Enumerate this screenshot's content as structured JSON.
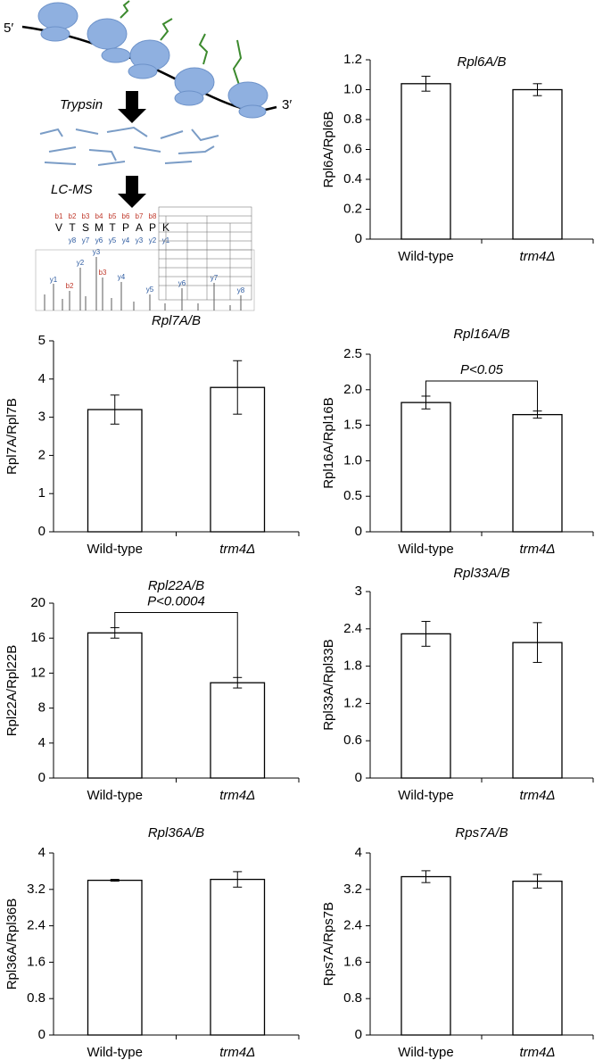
{
  "diagram": {
    "five_prime": "5′",
    "three_prime": "3′",
    "step1": "Trypsin",
    "step2": "LC-MS",
    "peptide": [
      "V",
      "T",
      "S",
      "M",
      "T",
      "P",
      "A",
      "P",
      "K"
    ],
    "b_ions": [
      "b1",
      "b2",
      "b3",
      "b4",
      "b5",
      "b6",
      "b7",
      "b8"
    ],
    "y_ions": [
      "y8",
      "y7",
      "y6",
      "y5",
      "y4",
      "y3",
      "y2",
      "y1"
    ],
    "peaks": [
      "y1",
      "b2",
      "y2",
      "y3",
      "b3",
      "y4",
      "y5",
      "y6",
      "y7",
      "y8"
    ]
  },
  "chart_data": [
    {
      "type": "bar",
      "title": "Rpl6A/B",
      "ylabel": "Rpl6A/Rpl6B",
      "categories": [
        "Wild-type",
        "trm4Δ"
      ],
      "values": [
        1.04,
        1.0
      ],
      "errors": [
        0.05,
        0.04
      ],
      "color": "#ffffff",
      "ylim": [
        0,
        1.2
      ],
      "yticks": [
        0,
        0.2,
        0.4,
        0.6,
        0.8,
        {
          "value": 1,
          "label": "1.0"
        },
        1.2
      ]
    },
    {
      "type": "bar",
      "title": "Rpl7A/B",
      "ylabel": "Rpl7A/Rpl7B",
      "categories": [
        "Wild-type",
        "trm4Δ"
      ],
      "values": [
        3.2,
        3.78
      ],
      "errors": [
        0.38,
        0.7
      ],
      "color": "#ffffff",
      "ylim": [
        0,
        5
      ],
      "yticks": [
        0,
        1,
        2,
        3,
        4,
        5
      ]
    },
    {
      "type": "bar",
      "title": "Rpl16A/B",
      "ylabel": "Rpl16A/Rpl16B",
      "categories": [
        "Wild-type",
        "trm4Δ"
      ],
      "values": [
        1.82,
        1.65
      ],
      "errors": [
        0.09,
        0.05
      ],
      "color": "#ffffff",
      "annotation": "P<0.05",
      "ylim": [
        0,
        2.5
      ],
      "yticks": [
        0,
        0.5,
        {
          "value": 1,
          "label": "1.0"
        },
        1.5,
        {
          "value": 2,
          "label": "2.0"
        },
        2.5
      ]
    },
    {
      "type": "bar",
      "title": "Rpl22A/B",
      "ylabel": "Rpl22A/Rpl22B",
      "categories": [
        "Wild-type",
        "trm4Δ"
      ],
      "values": [
        16.6,
        10.9
      ],
      "errors": [
        0.6,
        0.6
      ],
      "color": "#ffffff",
      "annotation": "P<0.0004",
      "ylim": [
        0,
        20
      ],
      "yticks": [
        0,
        4,
        8,
        12,
        16,
        20
      ]
    },
    {
      "type": "bar",
      "title": "Rpl33A/B",
      "ylabel": "Rpl33A/Rpl33B",
      "categories": [
        "Wild-type",
        "trm4Δ"
      ],
      "values": [
        2.32,
        2.18
      ],
      "errors": [
        0.2,
        0.32
      ],
      "color": "#ffffff",
      "ylim": [
        0,
        3
      ],
      "yticks": [
        0,
        0.6,
        1.2,
        1.8,
        2.4,
        3
      ]
    },
    {
      "type": "bar",
      "title": "Rpl36A/B",
      "ylabel": "Rpl36A/Rpl36B",
      "categories": [
        "Wild-type",
        "trm4Δ"
      ],
      "values": [
        3.4,
        3.42
      ],
      "errors": [
        0.02,
        0.17
      ],
      "color": "#ffffff",
      "ylim": [
        0,
        4
      ],
      "yticks": [
        0,
        0.8,
        1.6,
        2.4,
        3.2,
        4
      ]
    },
    {
      "type": "bar",
      "title": "Rps7A/B",
      "ylabel": "Rps7A/Rps7B",
      "categories": [
        "Wild-type",
        "trm4Δ"
      ],
      "values": [
        3.48,
        3.38
      ],
      "errors": [
        0.13,
        0.15
      ],
      "color": "#ffffff",
      "ylim": [
        0,
        4
      ],
      "yticks": [
        0,
        0.8,
        1.6,
        2.4,
        3.2,
        4
      ]
    }
  ]
}
